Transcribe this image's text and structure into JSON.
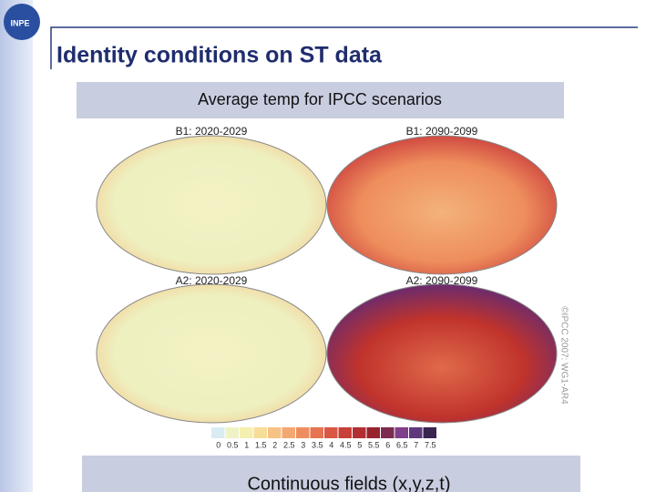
{
  "logo": "INPE",
  "title": "Identity conditions on ST data",
  "caption": "Average temp for IPCC scenarios",
  "maps": [
    {
      "label": "B1: 2020-2029"
    },
    {
      "label": "B1: 2090-2099"
    },
    {
      "label": "A2: 2020-2029"
    },
    {
      "label": "A2: 2090-2099"
    }
  ],
  "colorbar": {
    "labels": [
      "0",
      "0.5",
      "1",
      "1.5",
      "2",
      "2.5",
      "3",
      "3.5",
      "4",
      "4.5",
      "5",
      "5.5",
      "6",
      "6.5",
      "7",
      "7.5"
    ]
  },
  "credit": "©IPCC 2007: WG1-AR4",
  "footer": "Continuous fields (x,y,z,t)"
}
